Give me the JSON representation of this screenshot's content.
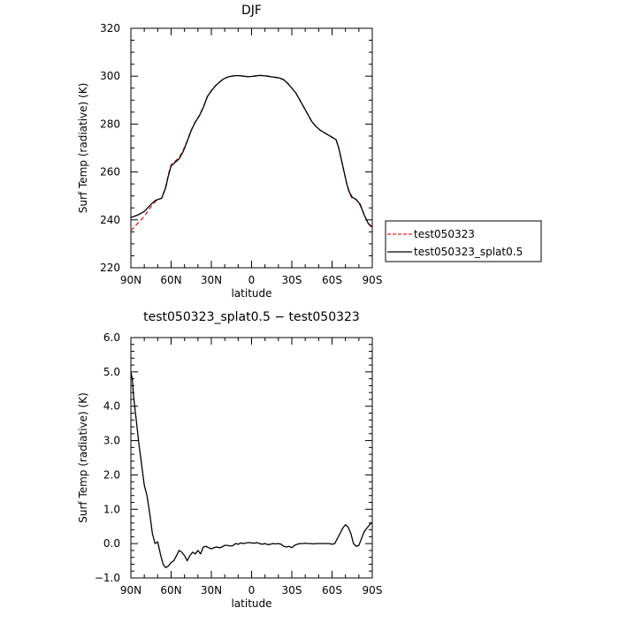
{
  "chart_data": [
    {
      "type": "line",
      "title": "DJF",
      "xlabel": "latitude",
      "ylabel": "Surf Temp (radiative) (K)",
      "xlim": [
        90,
        -90
      ],
      "ylim": [
        220,
        320
      ],
      "x_ticks": [
        90,
        60,
        30,
        0,
        -30,
        -60,
        -90
      ],
      "x_tick_labels": [
        "90N",
        "60N",
        "30N",
        "0",
        "30S",
        "60S",
        "90S"
      ],
      "y_ticks": [
        220,
        240,
        260,
        280,
        300,
        320
      ],
      "y_tick_labels": [
        "220",
        "240",
        "260",
        "280",
        "300",
        "320"
      ],
      "legend_position": "outside-right",
      "series": [
        {
          "name": "test050323",
          "color": "#dd2222",
          "dash": "dashed",
          "x": [
            90,
            85,
            80,
            75,
            72,
            70,
            67,
            64,
            62,
            60,
            57,
            54,
            51,
            48,
            45,
            42,
            39,
            36,
            33,
            30,
            27,
            24,
            21,
            18,
            15,
            12,
            9,
            6,
            3,
            0,
            -3,
            -6,
            -9,
            -12,
            -15,
            -18,
            -21,
            -24,
            -27,
            -30,
            -33,
            -36,
            -39,
            -42,
            -45,
            -48,
            -51,
            -54,
            -57,
            -60,
            -63,
            -65,
            -67,
            -69,
            -71,
            -73,
            -75,
            -78,
            -81,
            -84,
            -87,
            -90
          ],
          "y": [
            235.5,
            238.5,
            241.5,
            245.5,
            247.5,
            248.5,
            249.0,
            254.0,
            259.0,
            263.0,
            264.5,
            266.0,
            269.0,
            273.0,
            277.5,
            281.0,
            283.5,
            287.0,
            291.5,
            294.0,
            296.0,
            297.5,
            298.8,
            299.6,
            300.0,
            300.2,
            300.2,
            300.0,
            299.8,
            299.9,
            300.1,
            300.3,
            300.2,
            300.0,
            299.7,
            299.5,
            299.2,
            298.5,
            297.0,
            295.0,
            293.0,
            290.0,
            287.0,
            284.0,
            281.0,
            279.0,
            277.5,
            276.5,
            275.5,
            274.5,
            273.5,
            270.0,
            265.0,
            260.0,
            255.0,
            251.0,
            249.0,
            248.5,
            246.0,
            242.0,
            238.5,
            236.5
          ]
        },
        {
          "name": "test050323_splat0.5",
          "color": "#000000",
          "dash": "solid",
          "x": [
            90,
            85,
            80,
            75,
            72,
            70,
            67,
            64,
            62,
            60,
            57,
            54,
            51,
            48,
            45,
            42,
            39,
            36,
            33,
            30,
            27,
            24,
            21,
            18,
            15,
            12,
            9,
            6,
            3,
            0,
            -3,
            -6,
            -9,
            -12,
            -15,
            -18,
            -21,
            -24,
            -27,
            -30,
            -33,
            -36,
            -39,
            -42,
            -45,
            -48,
            -51,
            -54,
            -57,
            -60,
            -63,
            -65,
            -67,
            -69,
            -71,
            -73,
            -75,
            -78,
            -81,
            -84,
            -87,
            -90
          ],
          "y": [
            241.0,
            242.0,
            243.5,
            246.5,
            248.0,
            248.5,
            249.0,
            253.5,
            258.5,
            262.5,
            264.0,
            265.5,
            268.5,
            272.8,
            277.3,
            280.8,
            283.4,
            286.9,
            291.4,
            293.9,
            295.9,
            297.5,
            298.8,
            299.6,
            300.0,
            300.2,
            300.2,
            300.0,
            299.8,
            299.9,
            300.1,
            300.3,
            300.2,
            300.0,
            299.7,
            299.5,
            299.2,
            298.5,
            297.0,
            295.0,
            293.0,
            290.0,
            287.0,
            284.0,
            281.0,
            279.0,
            277.5,
            276.5,
            275.5,
            274.5,
            273.5,
            270.0,
            265.0,
            260.0,
            255.0,
            251.5,
            249.5,
            248.5,
            246.5,
            242.0,
            238.5,
            237.0
          ]
        }
      ]
    },
    {
      "type": "line",
      "title": "test050323_splat0.5 − test050323",
      "xlabel": "latitude",
      "ylabel": "Surf Temp (radiative) (K)",
      "xlim": [
        90,
        -90
      ],
      "ylim": [
        -1.0,
        6.0
      ],
      "x_ticks": [
        90,
        60,
        30,
        0,
        -30,
        -60,
        -90
      ],
      "x_tick_labels": [
        "90N",
        "60N",
        "30N",
        "0",
        "30S",
        "60S",
        "90S"
      ],
      "y_ticks": [
        -1.0,
        0.0,
        1.0,
        2.0,
        3.0,
        4.0,
        5.0,
        6.0
      ],
      "y_tick_labels": [
        "−1.0",
        "0.0",
        "1.0",
        "2.0",
        "3.0",
        "4.0",
        "5.0",
        "6.0"
      ],
      "series": [
        {
          "color": "#000000",
          "dash": "solid",
          "x": [
            90,
            89,
            88,
            86,
            84,
            82,
            80,
            78,
            76,
            74,
            72,
            70,
            68,
            66,
            64,
            62,
            60,
            58,
            56,
            54,
            52,
            50,
            48,
            46,
            44,
            42,
            40,
            38,
            36,
            34,
            32,
            30,
            28,
            26,
            24,
            22,
            20,
            18,
            16,
            14,
            12,
            10,
            8,
            6,
            4,
            2,
            0,
            -2,
            -4,
            -6,
            -8,
            -10,
            -12,
            -14,
            -16,
            -18,
            -20,
            -22,
            -24,
            -26,
            -28,
            -30,
            -32,
            -34,
            -36,
            -38,
            -40,
            -42,
            -44,
            -46,
            -48,
            -50,
            -52,
            -54,
            -56,
            -58,
            -60,
            -62,
            -64,
            -66,
            -68,
            -70,
            -72,
            -74,
            -76,
            -78,
            -80,
            -82,
            -84,
            -86,
            -88,
            -90
          ],
          "y": [
            5.0,
            4.8,
            4.3,
            3.6,
            2.9,
            2.3,
            1.7,
            1.4,
            0.9,
            0.3,
            0.0,
            0.05,
            -0.3,
            -0.6,
            -0.7,
            -0.65,
            -0.55,
            -0.5,
            -0.35,
            -0.2,
            -0.25,
            -0.35,
            -0.5,
            -0.35,
            -0.25,
            -0.3,
            -0.2,
            -0.3,
            -0.1,
            -0.08,
            -0.12,
            -0.15,
            -0.12,
            -0.1,
            -0.12,
            -0.1,
            -0.05,
            -0.05,
            -0.07,
            -0.06,
            0.0,
            -0.02,
            0.02,
            0.0,
            0.02,
            0.03,
            0.02,
            0.01,
            0.03,
            0.0,
            -0.02,
            0.0,
            -0.03,
            -0.02,
            0.0,
            -0.01,
            0.0,
            -0.02,
            -0.08,
            -0.1,
            -0.08,
            -0.12,
            -0.05,
            -0.02,
            0.0,
            0.0,
            0.01,
            0.0,
            0.0,
            -0.01,
            0.0,
            0.0,
            0.0,
            0.0,
            0.0,
            0.0,
            -0.02,
            0.0,
            0.15,
            0.3,
            0.45,
            0.55,
            0.48,
            0.3,
            0.0,
            -0.08,
            -0.05,
            0.15,
            0.35,
            0.45,
            0.55,
            0.62
          ]
        }
      ]
    }
  ]
}
